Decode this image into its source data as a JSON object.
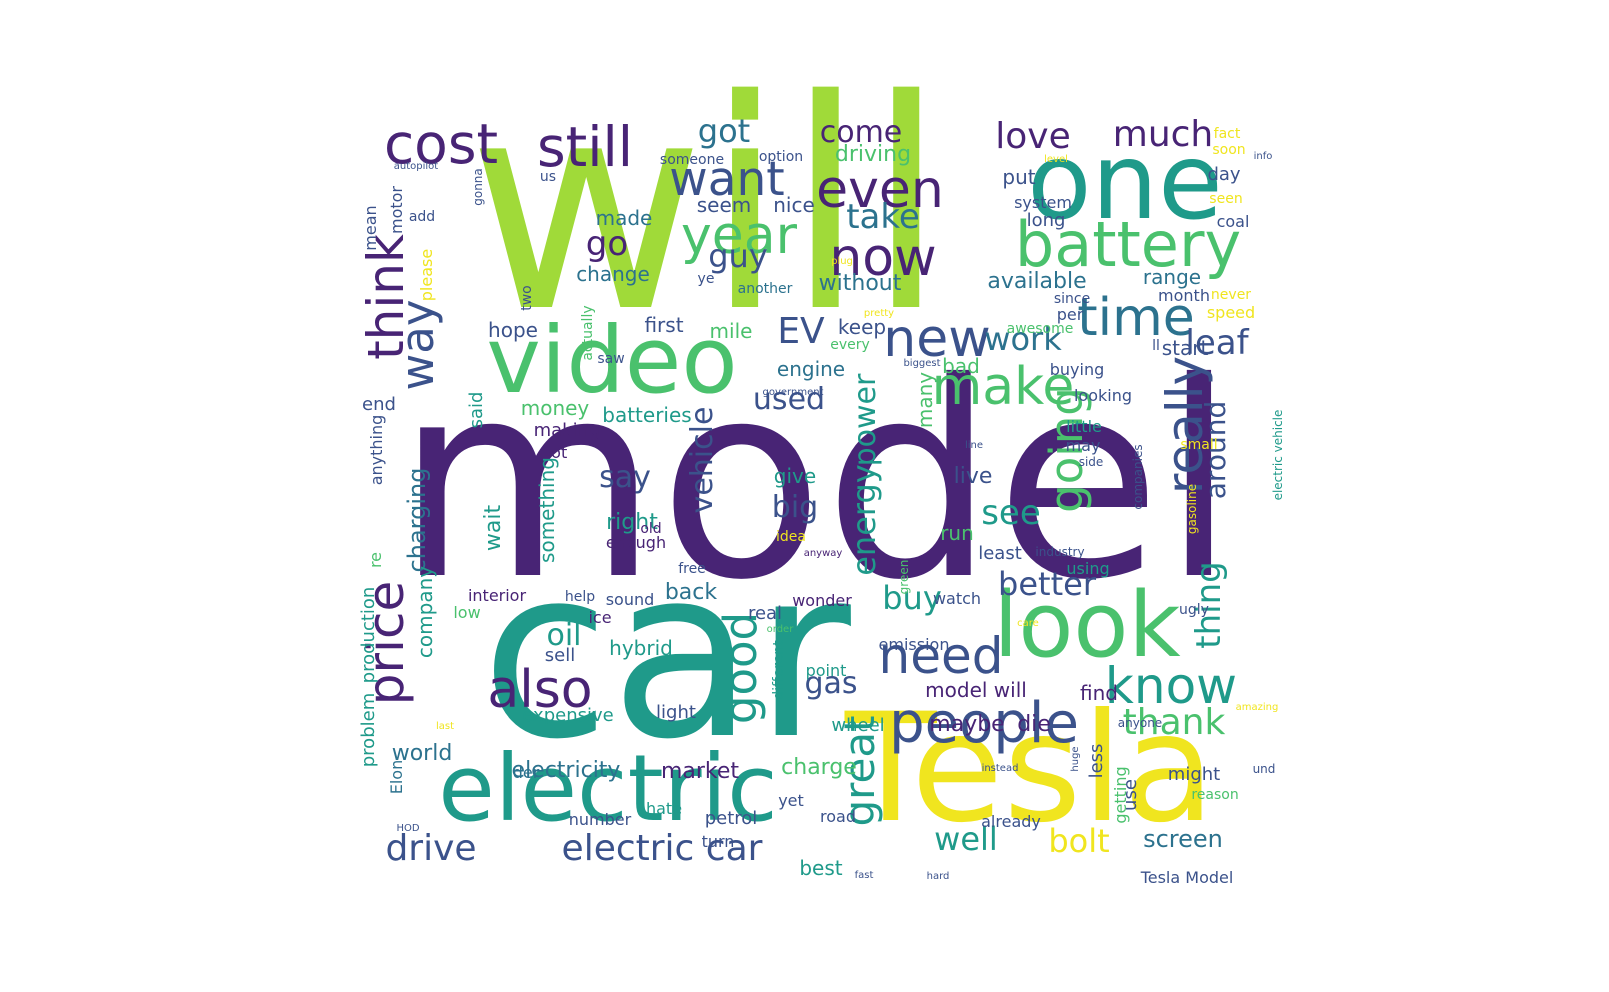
{
  "palette": {
    "lime": "#a0da39",
    "yellow": "#f0e51f",
    "teal": "#1f9a8a",
    "purple": "#482475",
    "navy": "#3b528b",
    "blue": "#2c728e",
    "green": "#4ac16d",
    "darkpurple": "#440154"
  },
  "words": [
    {
      "text": "will",
      "color": "lime"
    },
    {
      "text": "model",
      "color": "purple"
    },
    {
      "text": "car",
      "color": "teal"
    },
    {
      "text": "Tesla",
      "color": "yellow"
    },
    {
      "text": "one",
      "color": "teal"
    },
    {
      "text": "electric",
      "color": "teal"
    },
    {
      "text": "video",
      "color": "green"
    },
    {
      "text": "look",
      "color": "green"
    },
    {
      "text": "battery",
      "color": "green"
    },
    {
      "text": "cost",
      "color": "purple"
    },
    {
      "text": "still",
      "color": "purple"
    },
    {
      "text": "people",
      "color": "navy"
    },
    {
      "text": "year",
      "color": "green"
    },
    {
      "text": "even",
      "color": "purple"
    },
    {
      "text": "now",
      "color": "purple"
    },
    {
      "text": "time",
      "color": "blue"
    },
    {
      "text": "make",
      "color": "green"
    },
    {
      "text": "know",
      "color": "teal"
    },
    {
      "text": "new",
      "color": "navy"
    },
    {
      "text": "think",
      "color": "purple"
    },
    {
      "text": "price",
      "color": "purple"
    },
    {
      "text": "also",
      "color": "purple"
    },
    {
      "text": "need",
      "color": "navy"
    },
    {
      "text": "way",
      "color": "navy"
    },
    {
      "text": "want",
      "color": "navy"
    },
    {
      "text": "really",
      "color": "navy"
    },
    {
      "text": "going",
      "color": "green"
    },
    {
      "text": "good",
      "color": "teal"
    },
    {
      "text": "great",
      "color": "teal"
    },
    {
      "text": "drive",
      "color": "navy"
    },
    {
      "text": "electric car",
      "color": "navy"
    },
    {
      "text": "love",
      "color": "purple"
    },
    {
      "text": "much",
      "color": "purple"
    },
    {
      "text": "EV",
      "color": "navy"
    },
    {
      "text": "got",
      "color": "blue"
    },
    {
      "text": "come",
      "color": "purple"
    },
    {
      "text": "take",
      "color": "blue"
    },
    {
      "text": "go",
      "color": "purple"
    },
    {
      "text": "guy",
      "color": "navy"
    },
    {
      "text": "leaf",
      "color": "navy"
    },
    {
      "text": "work",
      "color": "blue"
    },
    {
      "text": "thank",
      "color": "green"
    },
    {
      "text": "thing",
      "color": "teal"
    },
    {
      "text": "around",
      "color": "navy"
    },
    {
      "text": "well",
      "color": "teal"
    },
    {
      "text": "bolt",
      "color": "yellow"
    },
    {
      "text": "see",
      "color": "teal"
    },
    {
      "text": "better",
      "color": "navy"
    },
    {
      "text": "buy",
      "color": "teal"
    },
    {
      "text": "energy",
      "color": "teal"
    },
    {
      "text": "power",
      "color": "teal"
    },
    {
      "text": "vehicle",
      "color": "navy"
    },
    {
      "text": "say",
      "color": "navy"
    },
    {
      "text": "big",
      "color": "navy"
    },
    {
      "text": "used",
      "color": "navy"
    },
    {
      "text": "oil",
      "color": "teal"
    },
    {
      "text": "gas",
      "color": "navy"
    },
    {
      "text": "charging",
      "color": "blue"
    },
    {
      "text": "screen",
      "color": "blue"
    },
    {
      "text": "driving",
      "color": "green"
    },
    {
      "text": "made",
      "color": "blue"
    },
    {
      "text": "nice",
      "color": "navy"
    },
    {
      "text": "seem",
      "color": "navy"
    },
    {
      "text": "change",
      "color": "blue"
    },
    {
      "text": "without",
      "color": "blue"
    },
    {
      "text": "available",
      "color": "blue"
    },
    {
      "text": "range",
      "color": "blue"
    },
    {
      "text": "put",
      "color": "navy"
    },
    {
      "text": "day",
      "color": "navy"
    },
    {
      "text": "hope",
      "color": "navy"
    },
    {
      "text": "first",
      "color": "navy"
    },
    {
      "text": "mile",
      "color": "green"
    },
    {
      "text": "keep",
      "color": "navy"
    },
    {
      "text": "start",
      "color": "navy"
    },
    {
      "text": "engine",
      "color": "blue"
    },
    {
      "text": "bad",
      "color": "green"
    },
    {
      "text": "many",
      "color": "green"
    },
    {
      "text": "money",
      "color": "green"
    },
    {
      "text": "batteries",
      "color": "teal"
    },
    {
      "text": "live",
      "color": "navy"
    },
    {
      "text": "give",
      "color": "teal"
    },
    {
      "text": "right",
      "color": "teal"
    },
    {
      "text": "wait",
      "color": "teal"
    },
    {
      "text": "run",
      "color": "green"
    },
    {
      "text": "least",
      "color": "navy"
    },
    {
      "text": "back",
      "color": "blue"
    },
    {
      "text": "market",
      "color": "purple"
    },
    {
      "text": "charge",
      "color": "green"
    },
    {
      "text": "hybrid",
      "color": "teal"
    },
    {
      "text": "model will",
      "color": "purple"
    },
    {
      "text": "maybe",
      "color": "purple"
    },
    {
      "text": "die",
      "color": "purple"
    },
    {
      "text": "find",
      "color": "purple"
    },
    {
      "text": "world",
      "color": "blue"
    },
    {
      "text": "electricity",
      "color": "blue"
    },
    {
      "text": "best",
      "color": "teal"
    },
    {
      "text": "Tesla Model",
      "color": "navy"
    },
    {
      "text": "something",
      "color": "teal"
    },
    {
      "text": "company",
      "color": "teal"
    },
    {
      "text": "production",
      "color": "teal"
    },
    {
      "text": "problem",
      "color": "teal"
    },
    {
      "text": "interior",
      "color": "purple"
    },
    {
      "text": "sound",
      "color": "navy"
    },
    {
      "text": "wonder",
      "color": "purple"
    },
    {
      "text": "watch",
      "color": "navy"
    },
    {
      "text": "emission",
      "color": "navy"
    },
    {
      "text": "point",
      "color": "teal"
    },
    {
      "text": "wheel",
      "color": "teal"
    },
    {
      "text": "light",
      "color": "navy"
    },
    {
      "text": "expensive",
      "color": "teal"
    },
    {
      "text": "sell",
      "color": "navy"
    },
    {
      "text": "real",
      "color": "navy"
    },
    {
      "text": "ice",
      "color": "purple"
    },
    {
      "text": "low",
      "color": "green"
    },
    {
      "text": "help",
      "color": "navy"
    },
    {
      "text": "free",
      "color": "navy"
    },
    {
      "text": "enough",
      "color": "purple"
    },
    {
      "text": "old",
      "color": "purple"
    },
    {
      "text": "idea",
      "color": "yellow"
    },
    {
      "text": "said",
      "color": "teal"
    },
    {
      "text": "making",
      "color": "purple"
    },
    {
      "text": "lot",
      "color": "purple"
    },
    {
      "text": "end",
      "color": "navy"
    },
    {
      "text": "anything",
      "color": "navy"
    },
    {
      "text": "re",
      "color": "green"
    },
    {
      "text": "Elon",
      "color": "blue"
    },
    {
      "text": "der",
      "color": "blue"
    },
    {
      "text": "number",
      "color": "navy"
    },
    {
      "text": "hate",
      "color": "teal"
    },
    {
      "text": "petrol",
      "color": "navy"
    },
    {
      "text": "turn",
      "color": "navy"
    },
    {
      "text": "road",
      "color": "navy"
    },
    {
      "text": "yet",
      "color": "navy"
    },
    {
      "text": "already",
      "color": "navy"
    },
    {
      "text": "less",
      "color": "navy"
    },
    {
      "text": "getting",
      "color": "green"
    },
    {
      "text": "use",
      "color": "navy"
    },
    {
      "text": "might",
      "color": "navy"
    },
    {
      "text": "reason",
      "color": "green"
    },
    {
      "text": "ugly",
      "color": "navy"
    },
    {
      "text": "using",
      "color": "teal"
    },
    {
      "text": "industry",
      "color": "navy"
    },
    {
      "text": "small",
      "color": "yellow"
    },
    {
      "text": "may",
      "color": "navy"
    },
    {
      "text": "little",
      "color": "teal"
    },
    {
      "text": "looking",
      "color": "navy"
    },
    {
      "text": "buying",
      "color": "navy"
    },
    {
      "text": "awesome",
      "color": "green"
    },
    {
      "text": "per",
      "color": "navy"
    },
    {
      "text": "since",
      "color": "navy"
    },
    {
      "text": "never",
      "color": "yellow"
    },
    {
      "text": "speed",
      "color": "yellow"
    },
    {
      "text": "month",
      "color": "navy"
    },
    {
      "text": "system",
      "color": "navy"
    },
    {
      "text": "long",
      "color": "navy"
    },
    {
      "text": "coal",
      "color": "navy"
    },
    {
      "text": "seen",
      "color": "yellow"
    },
    {
      "text": "fact",
      "color": "yellow"
    },
    {
      "text": "soon",
      "color": "yellow"
    },
    {
      "text": "someone",
      "color": "navy"
    },
    {
      "text": "option",
      "color": "navy"
    },
    {
      "text": "us",
      "color": "navy"
    },
    {
      "text": "add",
      "color": "navy"
    },
    {
      "text": "motor",
      "color": "navy"
    },
    {
      "text": "mean",
      "color": "navy"
    },
    {
      "text": "please",
      "color": "yellow"
    },
    {
      "text": "two",
      "color": "navy"
    },
    {
      "text": "saw",
      "color": "navy"
    },
    {
      "text": "actually",
      "color": "green"
    },
    {
      "text": "another",
      "color": "blue"
    },
    {
      "text": "ye",
      "color": "navy"
    },
    {
      "text": "plug",
      "color": "yellow"
    },
    {
      "text": "pretty",
      "color": "yellow"
    },
    {
      "text": "every",
      "color": "green"
    },
    {
      "text": "government",
      "color": "navy"
    },
    {
      "text": "biggest",
      "color": "navy"
    },
    {
      "text": "companies",
      "color": "navy"
    },
    {
      "text": "gasoline",
      "color": "yellow"
    },
    {
      "text": "electric vehicle",
      "color": "teal"
    },
    {
      "text": "different",
      "color": "teal"
    },
    {
      "text": "green",
      "color": "green"
    },
    {
      "text": "anyway",
      "color": "purple"
    },
    {
      "text": "fast",
      "color": "navy"
    },
    {
      "text": "hard",
      "color": "navy"
    },
    {
      "text": "instead",
      "color": "navy"
    },
    {
      "text": "huge",
      "color": "navy"
    },
    {
      "text": "anyone",
      "color": "navy"
    },
    {
      "text": "amazing",
      "color": "yellow"
    },
    {
      "text": "und",
      "color": "navy"
    },
    {
      "text": "last",
      "color": "yellow"
    },
    {
      "text": "HOD",
      "color": "navy"
    },
    {
      "text": "order",
      "color": "green"
    },
    {
      "text": "care",
      "color": "yellow"
    },
    {
      "text": "gonna",
      "color": "navy"
    },
    {
      "text": "autopilot",
      "color": "navy"
    },
    {
      "text": "level",
      "color": "yellow"
    },
    {
      "text": "info",
      "color": "navy"
    },
    {
      "text": "line",
      "color": "navy"
    },
    {
      "text": "side",
      "color": "navy"
    },
    {
      "text": "ll",
      "color": "navy"
    }
  ]
}
